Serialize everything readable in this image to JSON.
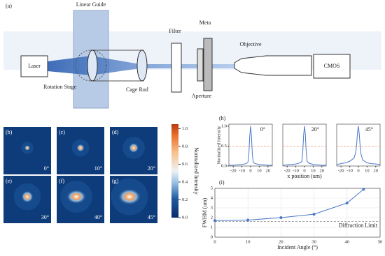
{
  "diagram": {
    "panel_label": "(a)",
    "linear_guide": "Linear Guide",
    "filter": "Filter",
    "meta": "Meta",
    "objective": "Objective",
    "laser": "Laser",
    "rotation_stage": "Rotation Stage",
    "cage_rod": "Cage Rod",
    "aperture": "Aperture",
    "cmos": "CMOS"
  },
  "panels": [
    {
      "label": "(b)",
      "angle": "0°"
    },
    {
      "label": "(c)",
      "angle": "10°"
    },
    {
      "label": "(d)",
      "angle": "20°"
    },
    {
      "label": "(e)",
      "angle": "30°"
    },
    {
      "label": "(f)",
      "angle": "40°"
    },
    {
      "label": "(g)",
      "angle": "45°"
    }
  ],
  "colorbar": {
    "label": "Normalized Intensity",
    "lim": [
      0,
      1.05
    ],
    "ticks": [
      {
        "value": 0,
        "label": "0.0"
      },
      {
        "value": 0.2,
        "label": "0.2"
      },
      {
        "value": 0.4,
        "label": "0.4"
      },
      {
        "value": 0.6,
        "label": "0.6"
      },
      {
        "value": 0.8,
        "label": "0.8"
      },
      {
        "value": 1,
        "label": "1.0"
      }
    ]
  },
  "chart_data": [
    {
      "type": "line",
      "panel_label": "(h)",
      "title": "0°",
      "ylabel": "Normalized Intensity",
      "color": "#4a78c8",
      "x": [
        -25,
        -20,
        -15,
        -10,
        -5,
        -3,
        -2,
        -1,
        0,
        1,
        2,
        3,
        5,
        10,
        15,
        20,
        25
      ],
      "values": [
        0.02,
        0.02,
        0.03,
        0.04,
        0.06,
        0.1,
        0.3,
        0.75,
        1.0,
        0.75,
        0.3,
        0.1,
        0.06,
        0.04,
        0.03,
        0.02,
        0.02
      ],
      "xlim": [
        -25,
        25
      ],
      "ylim": [
        0,
        1.05
      ],
      "xticks": [
        -20,
        -10,
        0,
        10,
        20
      ],
      "yticks": [
        {
          "value": 0,
          "label": "0.0"
        },
        {
          "value": 0.5,
          "label": "0.5"
        },
        {
          "value": 1,
          "label": "1.0"
        }
      ],
      "reference_line": {
        "value": 0.5,
        "color": "#f4a582"
      }
    },
    {
      "type": "line",
      "title": "20°",
      "xlabel": "x position (um)",
      "color": "#4a78c8",
      "x": [
        -25,
        -20,
        -15,
        -10,
        -5,
        -3,
        -2,
        -1,
        0,
        1,
        2,
        3,
        5,
        10,
        15,
        20,
        25
      ],
      "values": [
        0.02,
        0.03,
        0.04,
        0.05,
        0.08,
        0.12,
        0.35,
        0.78,
        1.0,
        0.78,
        0.35,
        0.12,
        0.07,
        0.04,
        0.03,
        0.02,
        0.02
      ],
      "xlim": [
        -25,
        25
      ],
      "ylim": [
        0,
        1.05
      ],
      "xticks": [
        -20,
        -10,
        0,
        10,
        20
      ],
      "reference_line": {
        "value": 0.5,
        "color": "#f4a582"
      }
    },
    {
      "type": "line",
      "title": "45°",
      "color": "#4a78c8",
      "x": [
        -25,
        -20,
        -15,
        -10,
        -5,
        -3,
        -2,
        -1,
        0,
        1,
        2,
        3,
        5,
        10,
        15,
        20,
        25
      ],
      "values": [
        0.04,
        0.06,
        0.08,
        0.12,
        0.2,
        0.35,
        0.55,
        0.85,
        1.0,
        0.8,
        0.5,
        0.3,
        0.15,
        0.08,
        0.06,
        0.05,
        0.04
      ],
      "xlim": [
        -25,
        25
      ],
      "ylim": [
        0,
        1.05
      ],
      "xticks": [
        -20,
        -10,
        0,
        10,
        20
      ],
      "reference_line": {
        "value": 0.5,
        "color": "#f4a582"
      }
    },
    {
      "type": "line",
      "panel_label": "(i)",
      "xlabel": "Incident Angle (°)",
      "ylabel": "FWHM (um)",
      "color": "#4a78c8",
      "markers": true,
      "grid": true,
      "x": [
        0,
        10,
        20,
        30,
        40,
        45
      ],
      "values": [
        1.7,
        1.75,
        2.0,
        2.35,
        3.5,
        4.9
      ],
      "xlim": [
        0,
        50
      ],
      "ylim": [
        0,
        5
      ],
      "xticks": [
        0,
        10,
        20,
        30,
        40,
        50
      ],
      "yticks": [
        0,
        1,
        2,
        3,
        4,
        5
      ],
      "reference_line": {
        "value": 1.6,
        "color": "#888888",
        "label": "Diffraction Limit"
      }
    }
  ]
}
